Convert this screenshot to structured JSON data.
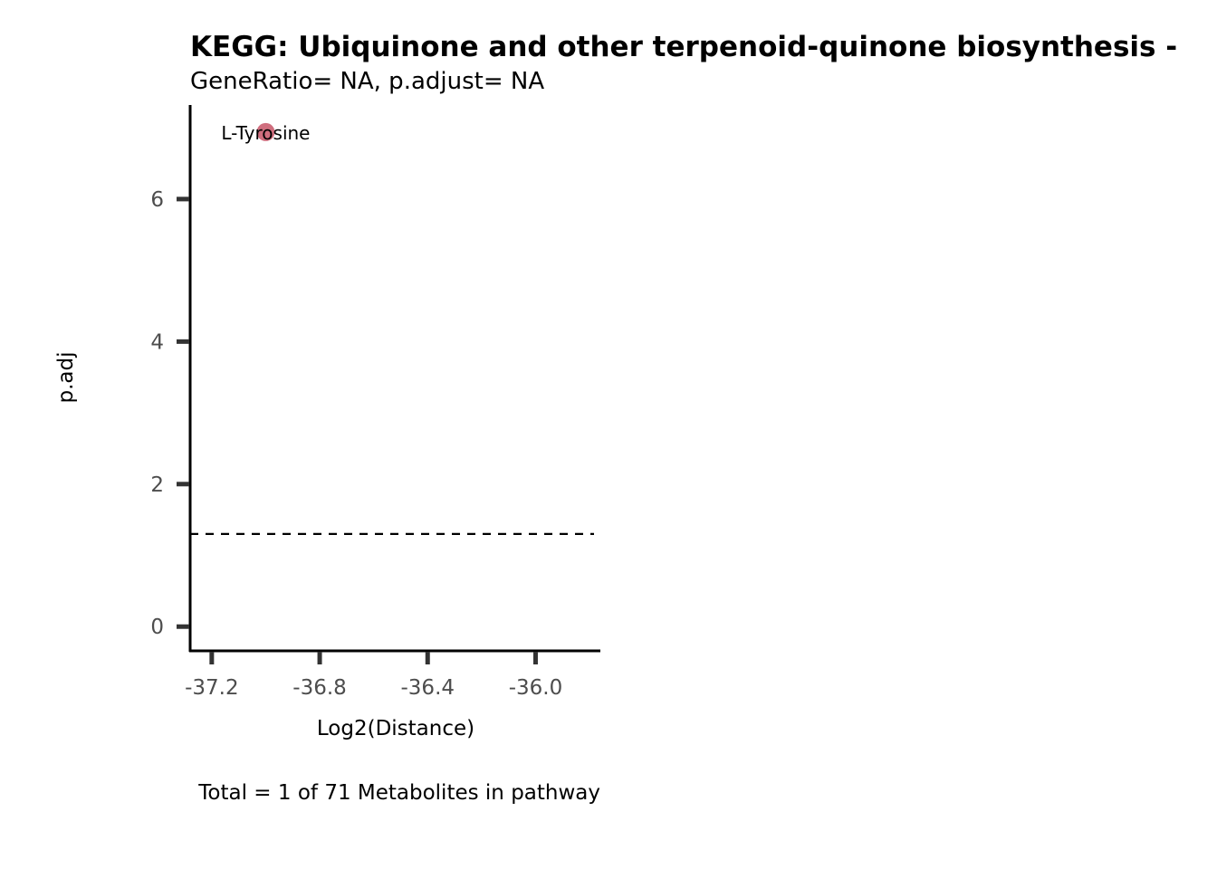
{
  "chart_data": {
    "type": "scatter",
    "title": "KEGG: Ubiquinone and other terpenoid-quinone biosynthesis -",
    "subtitle": "GeneRatio= NA, p.adjust= NA",
    "xlabel": "Log2(Distance)",
    "ylabel": "p.adj",
    "caption": "Total = 1 of 71 Metabolites in pathway",
    "xlim": [
      -37.28,
      -35.76
    ],
    "ylim": [
      -0.34,
      7.32
    ],
    "x_ticks": [
      -37.2,
      -36.8,
      -36.4,
      -36.0
    ],
    "x_tick_labels": [
      "-37.2",
      "-36.8",
      "-36.4",
      "-36.0"
    ],
    "y_ticks": [
      0,
      2,
      4,
      6
    ],
    "y_tick_labels": [
      "0",
      "2",
      "4",
      "6"
    ],
    "threshold_line": {
      "y": 1.3,
      "style": "dashed",
      "color": "#000000"
    },
    "grid": false,
    "points": [
      {
        "label": "L-Tyrosine",
        "x": -37.0,
        "y": 6.94,
        "color": "#cc6677"
      }
    ]
  }
}
